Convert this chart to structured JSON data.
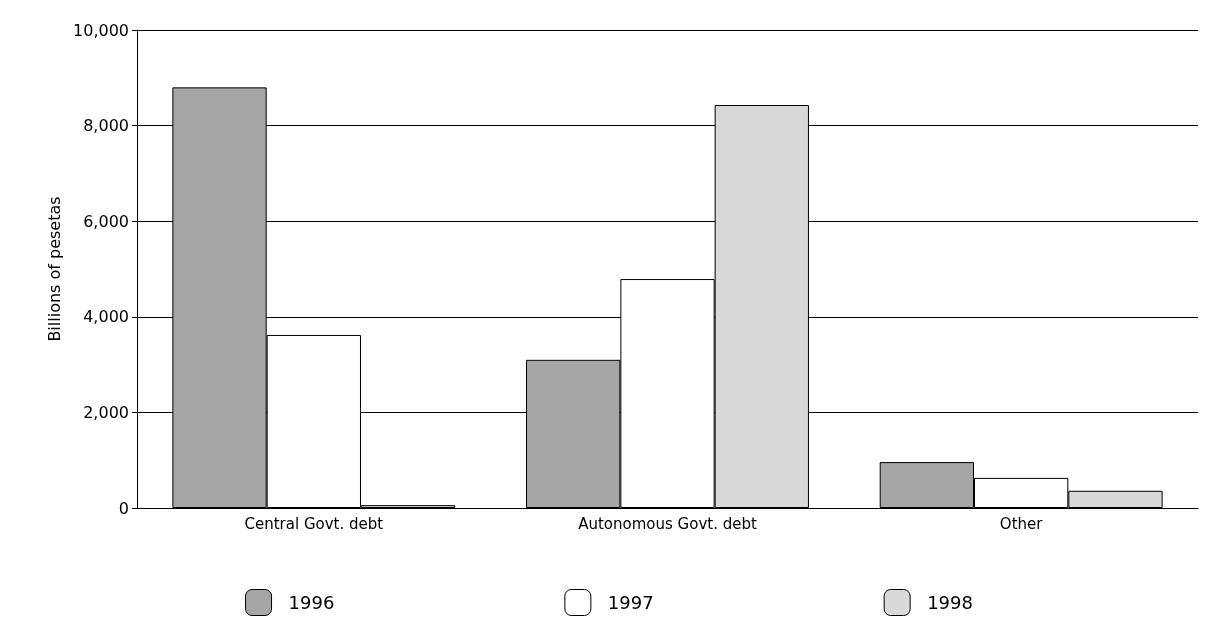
{
  "chart_data": {
    "type": "bar",
    "ylabel": "Billions of pesetas",
    "categories": [
      "Central Govt. debt",
      "Autonomous Govt. debt",
      "Other"
    ],
    "series": [
      {
        "name": "1996",
        "color": "#a6a6a6",
        "values": [
          8800,
          3100,
          960
        ]
      },
      {
        "name": "1997",
        "color": "#ffffff",
        "values": [
          3620,
          4790,
          630
        ]
      },
      {
        "name": "1998",
        "color": "#d9d9d9",
        "values": [
          60,
          8430,
          360
        ]
      }
    ],
    "ylim": [
      0,
      10000
    ],
    "yticks": [
      0,
      {
        "value": 2000,
        "label": "2,000"
      },
      {
        "value": 4000,
        "label": "4,000"
      },
      {
        "value": 6000,
        "label": "6,000"
      },
      {
        "value": 8000,
        "label": "8,000"
      },
      {
        "value": 10000,
        "label": "10,000"
      }
    ],
    "grid": "y",
    "legend": "bottom"
  }
}
